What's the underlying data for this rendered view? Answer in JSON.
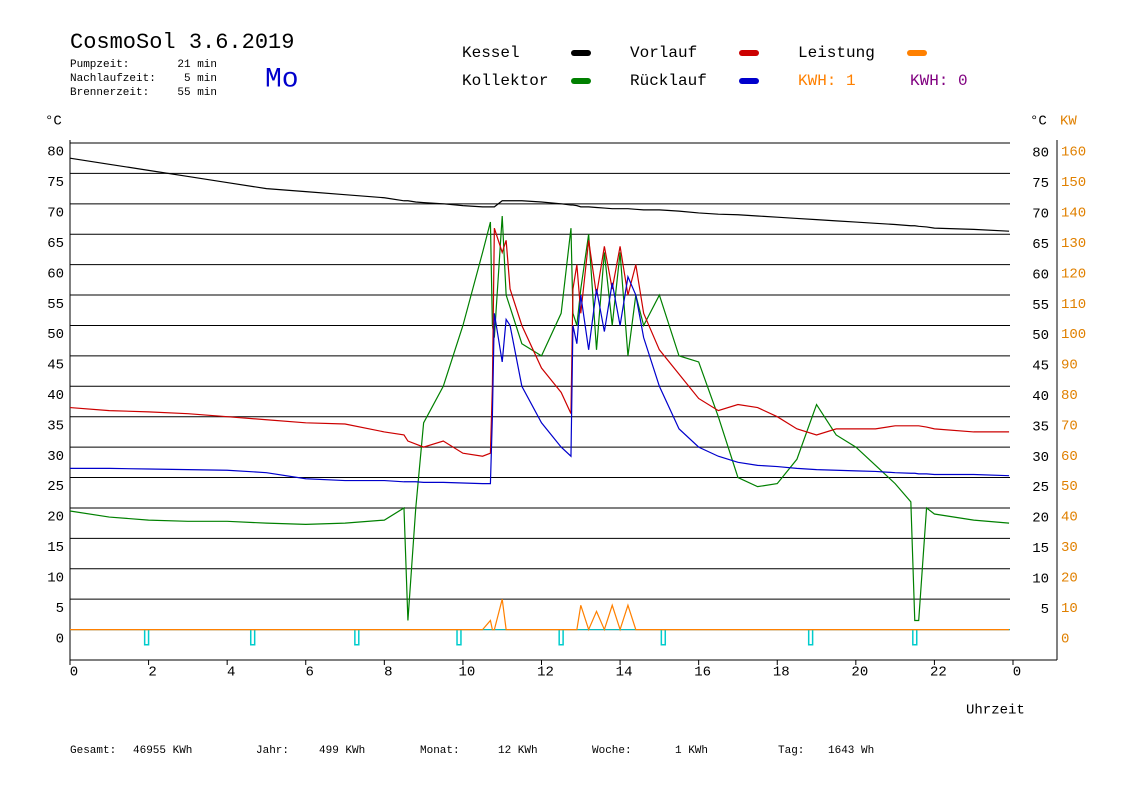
{
  "header": {
    "title": "CosmoSol 3.6.2019",
    "day": "Mo",
    "stats": [
      {
        "label": "Pumpzeit:",
        "value": "21 min"
      },
      {
        "label": "Nachlaufzeit:",
        "value": "5 min"
      },
      {
        "label": "Brennerzeit:",
        "value": "55 min"
      }
    ]
  },
  "chart_data": {
    "type": "line",
    "x": [
      0,
      1,
      2,
      3,
      4,
      5,
      6,
      7,
      8,
      8.5,
      8.6,
      8.8,
      9,
      9.5,
      10,
      10.5,
      10.7,
      10.75,
      10.8,
      11,
      11.1,
      11.2,
      11.5,
      12,
      12.5,
      12.75,
      12.8,
      12.9,
      13,
      13.2,
      13.4,
      13.6,
      13.8,
      14,
      14.2,
      14.4,
      14.6,
      15,
      15.5,
      16,
      16.5,
      17,
      17.5,
      18,
      18.5,
      19,
      19.5,
      20,
      20.5,
      21,
      21.4,
      21.5,
      21.6,
      21.8,
      22,
      23,
      23.9
    ],
    "series": [
      {
        "name": "Kessel",
        "color": "#000000",
        "values": [
          77.5,
          76.5,
          75.5,
          74.5,
          73.5,
          72.5,
          72,
          71.5,
          71,
          70.5,
          70.5,
          70.3,
          70.2,
          70,
          69.7,
          69.5,
          69.5,
          69.5,
          69.5,
          70.5,
          70.5,
          70.5,
          70.5,
          70.3,
          70,
          69.8,
          69.8,
          69.7,
          69.5,
          69.5,
          69.4,
          69.3,
          69.2,
          69.2,
          69.2,
          69.1,
          69,
          69,
          68.8,
          68.5,
          68.3,
          68.2,
          68,
          67.8,
          67.6,
          67.4,
          67.2,
          67,
          66.8,
          66.6,
          66.4,
          66.4,
          66.3,
          66.2,
          66,
          65.8,
          65.5
        ]
      },
      {
        "name": "Vorlauf",
        "color": "#cc0000",
        "values": [
          36.5,
          36,
          35.8,
          35.5,
          35,
          34.5,
          34,
          33.8,
          32.5,
          32,
          31,
          30.5,
          30,
          31,
          29,
          28.5,
          29,
          40,
          66,
          62,
          64,
          56,
          50,
          43,
          39,
          35.5,
          56,
          60,
          52,
          64,
          55,
          63,
          56,
          63,
          55,
          60,
          52,
          46,
          42,
          38,
          36,
          37,
          36.5,
          35,
          33,
          32,
          33,
          33,
          33,
          33.5,
          33.5,
          33.5,
          33.5,
          33.3,
          33,
          32.5,
          32.5
        ]
      },
      {
        "name": "Leistung",
        "color": "#ff8000",
        "axis": "y2",
        "values": [
          0,
          0,
          0,
          0,
          0,
          0,
          0,
          0,
          0,
          0,
          0,
          0,
          0,
          0,
          0,
          0,
          3,
          0,
          0,
          10,
          0,
          0,
          0,
          0,
          0,
          0,
          0,
          0,
          8,
          0,
          6,
          0,
          8,
          0,
          8,
          0,
          0,
          0,
          0,
          0,
          0,
          0,
          0,
          0,
          0,
          0,
          0,
          0,
          0,
          0,
          0,
          0,
          0,
          0,
          0,
          0,
          0
        ]
      },
      {
        "name": "Kollektor",
        "color": "#008000",
        "values": [
          19.5,
          18.5,
          18,
          17.8,
          17.8,
          17.5,
          17.3,
          17.5,
          18,
          20,
          1.5,
          20,
          34,
          40,
          50,
          62,
          67,
          50,
          48,
          68,
          55,
          53,
          47,
          45,
          52,
          66,
          52,
          50,
          56,
          65,
          46,
          62,
          50,
          62,
          45,
          55,
          50,
          55,
          45,
          44,
          35,
          25,
          23.5,
          24,
          28,
          37,
          32,
          30,
          27,
          24,
          21,
          1.5,
          1.5,
          20,
          19,
          18,
          17.5
        ]
      },
      {
        "name": "Rücklauf",
        "color": "#0000cc",
        "values": [
          26.5,
          26.5,
          26.4,
          26.3,
          26.2,
          25.8,
          24.8,
          24.5,
          24.5,
          24.3,
          24.3,
          24.3,
          24.2,
          24.2,
          24.1,
          24,
          24,
          35,
          52,
          44,
          51,
          50,
          40,
          34,
          30,
          28.5,
          50,
          47,
          55,
          46,
          56,
          49,
          57,
          50,
          58,
          55,
          48,
          40,
          33,
          30,
          28.5,
          27.5,
          27,
          26.8,
          26.5,
          26.3,
          26.2,
          26.1,
          26,
          25.8,
          25.7,
          25.7,
          25.6,
          25.6,
          25.5,
          25.5,
          25.3
        ]
      }
    ],
    "kwh": [
      {
        "text": "KWH: 1",
        "color": "#ff8000"
      },
      {
        "text": "KWH: 0",
        "color": "#800080"
      }
    ],
    "pulses": {
      "color": "#00cccc",
      "depth": -2.5,
      "x": [
        1.95,
        4.65,
        7.3,
        9.9,
        12.5,
        15.1,
        18.85,
        21.5
      ]
    },
    "xlim": [
      0,
      24
    ],
    "xticks": [
      0,
      2,
      4,
      6,
      8,
      10,
      12,
      14,
      16,
      18,
      20,
      22,
      {
        "value": 24,
        "label": "0"
      }
    ],
    "ylim": [
      -5,
      80
    ],
    "yticks": [
      0,
      5,
      10,
      15,
      20,
      25,
      30,
      35,
      40,
      45,
      50,
      55,
      60,
      65,
      70,
      75,
      80
    ],
    "y2lim": [
      -10,
      160
    ],
    "y2ticks": [
      0,
      10,
      20,
      30,
      40,
      50,
      60,
      70,
      80,
      90,
      100,
      110,
      120,
      130,
      140,
      150,
      160
    ],
    "y_label": "°C",
    "y2_label": "KW",
    "x_label": "Uhrzeit",
    "grid": true
  },
  "footer": [
    {
      "label": "Gesamt:",
      "value": "46955 KWh"
    },
    {
      "label": "Jahr:",
      "value": "499 KWh"
    },
    {
      "label": "Monat:",
      "value": "12 KWh"
    },
    {
      "label": "Woche:",
      "value": "1 KWh"
    },
    {
      "label": "Tag:",
      "value": "1643 Wh"
    }
  ]
}
